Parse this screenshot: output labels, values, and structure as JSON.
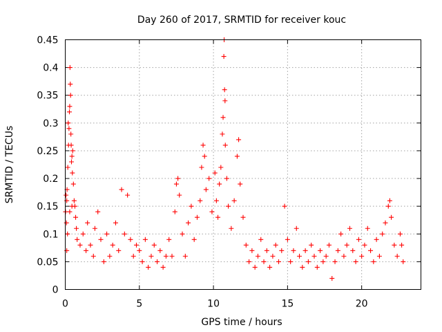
{
  "chart_data": {
    "type": "scatter",
    "title": "Day 260 of 2017, SRMTID for receiver kouc",
    "xlabel": "GPS time / hours",
    "ylabel": "SRMTID / TECUs",
    "xlim": [
      0,
      24
    ],
    "ylim": [
      0,
      0.45
    ],
    "xticks": [
      0,
      5,
      10,
      15,
      20
    ],
    "xtick_labels": [
      "0",
      "5",
      "10",
      "15",
      "20"
    ],
    "yticks": [
      0,
      0.05,
      0.1,
      0.15,
      0.2,
      0.25,
      0.3,
      0.35,
      0.4,
      0.45
    ],
    "ytick_labels": [
      "0",
      "0.05",
      "0.1",
      "0.15",
      "0.2",
      "0.25",
      "0.3",
      "0.35",
      "0.4",
      "0.45"
    ],
    "grid": true,
    "marker": "+",
    "series_color": "#ff0000",
    "series": [
      {
        "name": "SRMTID",
        "points": [
          [
            0.02,
            0.14
          ],
          [
            0.05,
            0.17
          ],
          [
            0.08,
            0.12
          ],
          [
            0.1,
            0.16
          ],
          [
            0.12,
            0.18
          ],
          [
            0.15,
            0.1
          ],
          [
            0.17,
            0.22
          ],
          [
            0.2,
            0.3
          ],
          [
            0.22,
            0.26
          ],
          [
            0.25,
            0.29
          ],
          [
            0.28,
            0.32
          ],
          [
            0.3,
            0.33
          ],
          [
            0.32,
            0.4
          ],
          [
            0.34,
            0.37
          ],
          [
            0.36,
            0.35
          ],
          [
            0.38,
            0.28
          ],
          [
            0.4,
            0.26
          ],
          [
            0.42,
            0.23
          ],
          [
            0.45,
            0.24
          ],
          [
            0.48,
            0.21
          ],
          [
            0.5,
            0.25
          ],
          [
            0.55,
            0.19
          ],
          [
            0.6,
            0.16
          ],
          [
            0.65,
            0.15
          ],
          [
            0.7,
            0.13
          ],
          [
            0.75,
            0.11
          ],
          [
            0.8,
            0.09
          ],
          [
            0.1,
            0.07
          ],
          [
            0.3,
            0.14
          ],
          [
            0.45,
            0.15
          ],
          [
            1.0,
            0.08
          ],
          [
            1.2,
            0.1
          ],
          [
            1.4,
            0.07
          ],
          [
            1.5,
            0.12
          ],
          [
            1.7,
            0.08
          ],
          [
            1.9,
            0.06
          ],
          [
            2.0,
            0.11
          ],
          [
            2.2,
            0.14
          ],
          [
            2.4,
            0.09
          ],
          [
            2.6,
            0.05
          ],
          [
            2.8,
            0.1
          ],
          [
            3.0,
            0.06
          ],
          [
            3.2,
            0.08
          ],
          [
            3.4,
            0.12
          ],
          [
            3.6,
            0.07
          ],
          [
            3.8,
            0.18
          ],
          [
            4.0,
            0.1
          ],
          [
            4.2,
            0.17
          ],
          [
            4.4,
            0.09
          ],
          [
            4.6,
            0.06
          ],
          [
            4.8,
            0.08
          ],
          [
            5.0,
            0.07
          ],
          [
            5.2,
            0.05
          ],
          [
            5.4,
            0.09
          ],
          [
            5.6,
            0.04
          ],
          [
            5.8,
            0.06
          ],
          [
            6.0,
            0.08
          ],
          [
            6.2,
            0.05
          ],
          [
            6.4,
            0.07
          ],
          [
            6.6,
            0.04
          ],
          [
            6.8,
            0.06
          ],
          [
            7.0,
            0.09
          ],
          [
            7.2,
            0.06
          ],
          [
            7.4,
            0.14
          ],
          [
            7.5,
            0.19
          ],
          [
            7.6,
            0.2
          ],
          [
            7.7,
            0.17
          ],
          [
            7.9,
            0.1
          ],
          [
            8.1,
            0.06
          ],
          [
            8.3,
            0.12
          ],
          [
            8.5,
            0.15
          ],
          [
            8.7,
            0.09
          ],
          [
            8.9,
            0.13
          ],
          [
            9.1,
            0.16
          ],
          [
            9.2,
            0.22
          ],
          [
            9.3,
            0.26
          ],
          [
            9.4,
            0.24
          ],
          [
            9.5,
            0.18
          ],
          [
            9.7,
            0.2
          ],
          [
            9.9,
            0.14
          ],
          [
            10.1,
            0.21
          ],
          [
            10.2,
            0.16
          ],
          [
            10.3,
            0.13
          ],
          [
            10.4,
            0.19
          ],
          [
            10.5,
            0.22
          ],
          [
            10.6,
            0.28
          ],
          [
            10.65,
            0.31
          ],
          [
            10.7,
            0.42
          ],
          [
            10.72,
            0.45
          ],
          [
            10.75,
            0.36
          ],
          [
            10.78,
            0.34
          ],
          [
            10.8,
            0.26
          ],
          [
            10.9,
            0.2
          ],
          [
            11.0,
            0.15
          ],
          [
            11.2,
            0.11
          ],
          [
            11.4,
            0.16
          ],
          [
            11.6,
            0.24
          ],
          [
            11.7,
            0.27
          ],
          [
            11.8,
            0.19
          ],
          [
            12.0,
            0.13
          ],
          [
            12.2,
            0.08
          ],
          [
            12.4,
            0.05
          ],
          [
            12.6,
            0.07
          ],
          [
            12.8,
            0.04
          ],
          [
            13.0,
            0.06
          ],
          [
            13.2,
            0.09
          ],
          [
            13.4,
            0.05
          ],
          [
            13.6,
            0.07
          ],
          [
            13.8,
            0.04
          ],
          [
            14.0,
            0.06
          ],
          [
            14.2,
            0.08
          ],
          [
            14.4,
            0.05
          ],
          [
            14.6,
            0.07
          ],
          [
            14.8,
            0.15
          ],
          [
            15.0,
            0.09
          ],
          [
            15.2,
            0.05
          ],
          [
            15.4,
            0.07
          ],
          [
            15.6,
            0.11
          ],
          [
            15.8,
            0.06
          ],
          [
            16.0,
            0.04
          ],
          [
            16.2,
            0.07
          ],
          [
            16.4,
            0.05
          ],
          [
            16.6,
            0.08
          ],
          [
            16.8,
            0.06
          ],
          [
            17.0,
            0.04
          ],
          [
            17.2,
            0.07
          ],
          [
            17.4,
            0.05
          ],
          [
            17.6,
            0.06
          ],
          [
            17.8,
            0.08
          ],
          [
            18.0,
            0.02
          ],
          [
            18.2,
            0.05
          ],
          [
            18.4,
            0.07
          ],
          [
            18.6,
            0.1
          ],
          [
            18.8,
            0.06
          ],
          [
            19.0,
            0.08
          ],
          [
            19.2,
            0.11
          ],
          [
            19.4,
            0.07
          ],
          [
            19.6,
            0.05
          ],
          [
            19.8,
            0.09
          ],
          [
            20.0,
            0.06
          ],
          [
            20.2,
            0.08
          ],
          [
            20.4,
            0.11
          ],
          [
            20.6,
            0.07
          ],
          [
            20.8,
            0.05
          ],
          [
            21.0,
            0.09
          ],
          [
            21.2,
            0.06
          ],
          [
            21.4,
            0.1
          ],
          [
            21.6,
            0.12
          ],
          [
            21.8,
            0.15
          ],
          [
            21.9,
            0.16
          ],
          [
            22.0,
            0.13
          ],
          [
            22.2,
            0.08
          ],
          [
            22.4,
            0.06
          ],
          [
            22.6,
            0.1
          ],
          [
            22.7,
            0.08
          ],
          [
            22.8,
            0.05
          ]
        ]
      }
    ]
  }
}
